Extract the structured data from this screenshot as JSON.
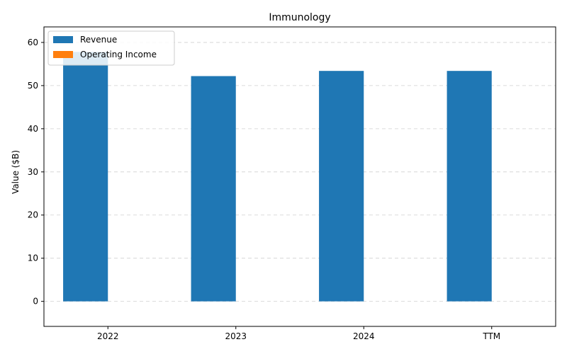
{
  "chart_data": {
    "type": "bar",
    "title": "Immunology",
    "xlabel": "",
    "ylabel": "Value ($B)",
    "categories": [
      "2022",
      "2023",
      "2024",
      "TTM"
    ],
    "series": [
      {
        "name": "Revenue",
        "values": [
          57.8,
          52.2,
          53.4,
          53.4
        ],
        "color": "#1f77b4"
      },
      {
        "name": "Operating Income",
        "values": [
          0,
          0,
          0,
          0
        ],
        "color": "#ff7f0e"
      }
    ],
    "ylim": [
      -5.8,
      63.6
    ],
    "yticks": [
      0,
      10,
      20,
      30,
      40,
      50,
      60
    ],
    "grid": true,
    "legend_position": "top-left"
  }
}
